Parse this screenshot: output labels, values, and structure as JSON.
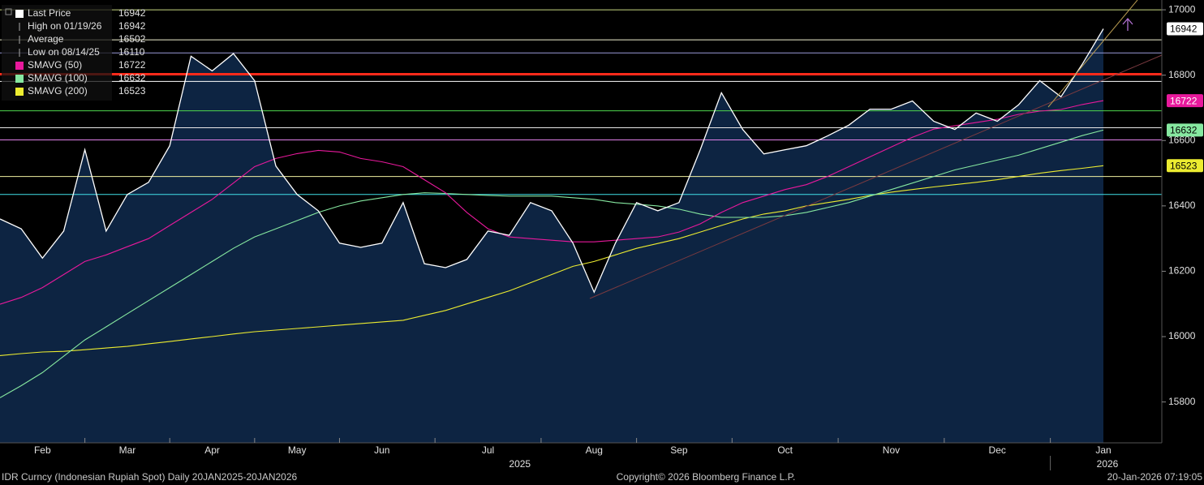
{
  "chart_data": {
    "type": "line",
    "categories": [
      null,
      null,
      "Feb",
      null,
      null,
      null,
      "Mar",
      null,
      null,
      null,
      "Apr",
      null,
      null,
      null,
      "May",
      null,
      null,
      null,
      "Jun",
      null,
      null,
      null,
      null,
      "Jul",
      null,
      null,
      null,
      null,
      "Aug",
      null,
      null,
      null,
      "Sep",
      null,
      null,
      null,
      null,
      "Oct",
      null,
      null,
      null,
      null,
      "Nov",
      null,
      null,
      null,
      null,
      "Dec",
      null,
      null,
      null,
      null,
      "Jan"
    ],
    "x_groups": [
      {
        "label": "2025"
      },
      {
        "label": "2026"
      }
    ],
    "series": [
      {
        "name": "Last Price",
        "color": "#ffffff",
        "fill": "#0d2442",
        "values": [
          16360,
          16330,
          16240,
          16323,
          16572,
          16323,
          16435,
          16472,
          16584,
          16858,
          16813,
          16866,
          16783,
          16522,
          16435,
          16385,
          16286,
          16273,
          16286,
          16410,
          16223,
          16211,
          16236,
          16323,
          16310,
          16410,
          16385,
          16286,
          16136,
          16286,
          16410,
          16385,
          16410,
          16572,
          16746,
          16634,
          16559,
          16572,
          16584,
          16614,
          16647,
          16696,
          16696,
          16721,
          16659,
          16634,
          16684,
          16659,
          16709,
          16783,
          16734,
          16833,
          16942
        ]
      },
      {
        "name": "SMAVG (50)",
        "color": "#e8199c",
        "values": [
          16099,
          16120,
          16150,
          16190,
          16230,
          16250,
          16275,
          16300,
          16340,
          16380,
          16420,
          16470,
          16520,
          16545,
          16560,
          16570,
          16565,
          16545,
          16535,
          16520,
          16480,
          16440,
          16380,
          16330,
          16305,
          16300,
          16295,
          16290,
          16290,
          16295,
          16300,
          16305,
          16320,
          16345,
          16380,
          16410,
          16430,
          16450,
          16465,
          16490,
          16520,
          16550,
          16580,
          16610,
          16635,
          16645,
          16655,
          16665,
          16680,
          16690,
          16695,
          16710,
          16722
        ]
      },
      {
        "name": "SMAVG (100)",
        "color": "#86e8a0",
        "values": [
          15813,
          15850,
          15890,
          15940,
          15990,
          16030,
          16070,
          16110,
          16150,
          16190,
          16230,
          16270,
          16305,
          16330,
          16355,
          16380,
          16400,
          16415,
          16425,
          16435,
          16440,
          16438,
          16435,
          16432,
          16430,
          16430,
          16430,
          16425,
          16420,
          16410,
          16405,
          16400,
          16390,
          16375,
          16365,
          16365,
          16365,
          16370,
          16380,
          16395,
          16410,
          16430,
          16450,
          16470,
          16490,
          16510,
          16525,
          16540,
          16555,
          16575,
          16595,
          16615,
          16632
        ]
      },
      {
        "name": "SMAVG (200)",
        "color": "#ecec30",
        "values": [
          15942,
          15948,
          15953,
          15955,
          15960,
          15965,
          15970,
          15978,
          15985,
          15993,
          16000,
          16008,
          16015,
          16020,
          16025,
          16030,
          16035,
          16040,
          16045,
          16050,
          16065,
          16080,
          16100,
          16120,
          16140,
          16165,
          16190,
          16215,
          16230,
          16250,
          16270,
          16285,
          16300,
          16320,
          16340,
          16360,
          16375,
          16385,
          16400,
          16410,
          16420,
          16432,
          16442,
          16450,
          16458,
          16465,
          16472,
          16480,
          16490,
          16500,
          16508,
          16515,
          16523
        ]
      }
    ],
    "stats": [
      {
        "label": "High on 01/19/26",
        "value": 16942
      },
      {
        "label": "Average",
        "value": 16502
      },
      {
        "label": "Low on 08/14/25",
        "value": 16110
      }
    ],
    "reference_lines": [
      {
        "value": 17000,
        "color": "#c8d880"
      },
      {
        "value": 16908,
        "color": "#f0f0d0"
      },
      {
        "value": 16868,
        "color": "#9a9ad8"
      },
      {
        "value": 16803,
        "color": "#ff2a1a"
      },
      {
        "value": 16781,
        "color": "#ffffff"
      },
      {
        "value": 16691,
        "color": "#4ed84e"
      },
      {
        "value": 16639,
        "color": "#e8e8e8"
      },
      {
        "value": 16602,
        "color": "#e080e8"
      },
      {
        "value": 16490,
        "color": "#f0f0a0"
      },
      {
        "value": 16435,
        "color": "#40e0e8"
      }
    ],
    "ylim": [
      15675,
      17030
    ],
    "yticks": [
      15800,
      16000,
      16200,
      16400,
      16600,
      16800,
      17000
    ],
    "footer": {
      "left": "IDR Curncy (Indonesian Rupiah Spot) Daily 20JAN2025-20JAN2026",
      "center": "Copyright© 2026 Bloomberg Finance L.P.",
      "right": "20-Jan-2026 07:19:05"
    }
  }
}
